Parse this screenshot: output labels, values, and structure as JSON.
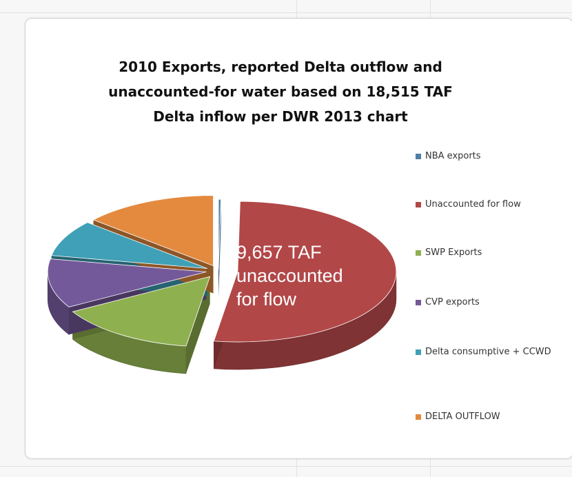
{
  "chart_data": {
    "type": "pie",
    "title": "2010 Exports, reported Delta outflow and unaccounted-for water based on 18,515 TAF Delta inflow per DWR 2013 chart",
    "slices": [
      {
        "label": "NBA exports",
        "value": 45,
        "color": "#4f7fa6"
      },
      {
        "label": "Unaccounted for flow",
        "value": 9657,
        "color": "#b24748"
      },
      {
        "label": "SWP Exports",
        "value": 2640,
        "color": "#8fb04f"
      },
      {
        "label": "CVP exports",
        "value": 2090,
        "color": "#74599a"
      },
      {
        "label": "Delta consumptive + CCWD",
        "value": 1555,
        "color": "#3fa0b7"
      },
      {
        "label": "DELTA OUTFLOW",
        "value": 2528,
        "color": "#e38a3f"
      }
    ],
    "annotation": "9,657 TAF\nunaccounted\nfor flow",
    "legend_position": "right"
  }
}
